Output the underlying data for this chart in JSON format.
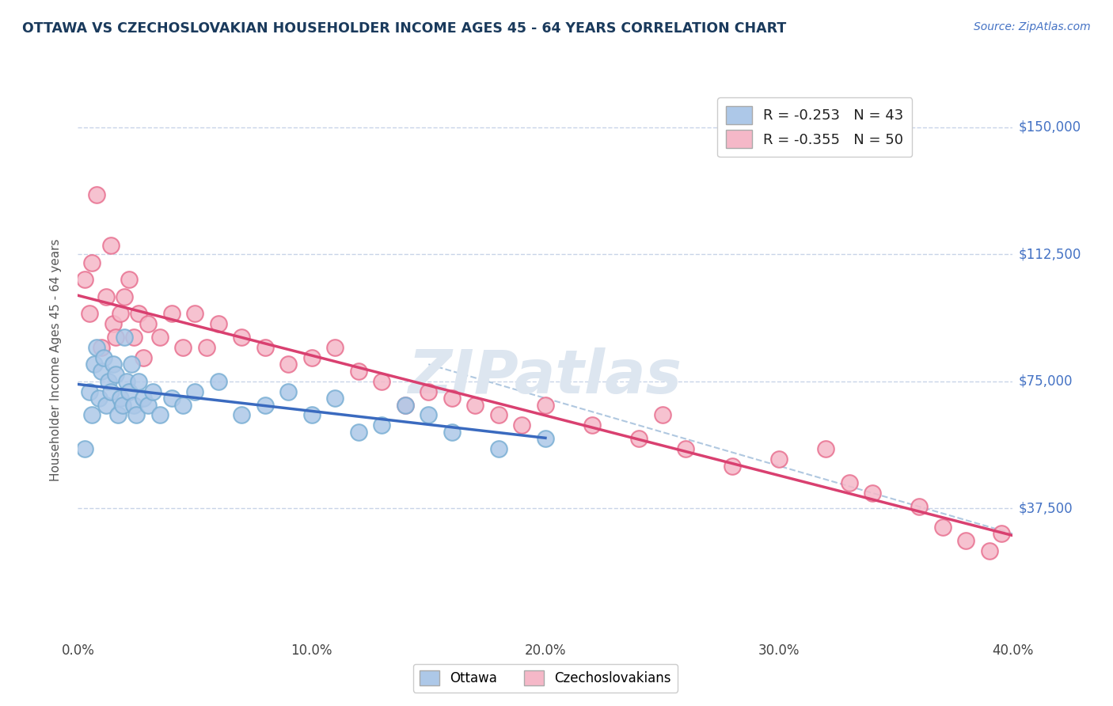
{
  "title": "OTTAWA VS CZECHOSLOVAKIAN HOUSEHOLDER INCOME AGES 45 - 64 YEARS CORRELATION CHART",
  "source": "Source: ZipAtlas.com",
  "ylabel": "Householder Income Ages 45 - 64 years",
  "xlim": [
    0.0,
    40.0
  ],
  "ylim": [
    0,
    162500
  ],
  "yticks": [
    0,
    37500,
    75000,
    112500,
    150000
  ],
  "ytick_labels": [
    "",
    "$37,500",
    "$75,000",
    "$112,500",
    "$150,000"
  ],
  "xticks": [
    0.0,
    10.0,
    20.0,
    30.0,
    40.0
  ],
  "xtick_labels": [
    "0.0%",
    "10.0%",
    "20.0%",
    "30.0%",
    "40.0%"
  ],
  "watermark": "ZIPatlas",
  "ottawa_color": "#adc8e8",
  "czech_color": "#f5b8c8",
  "ottawa_edge": "#7aafd4",
  "czech_edge": "#e87090",
  "trend_blue": "#3a6abf",
  "trend_pink": "#d94070",
  "trend_dashed": "#b0c8e0",
  "ottawa_R": -0.253,
  "ottawa_N": 43,
  "czech_R": -0.355,
  "czech_N": 50,
  "legend_blue_label": "R = -0.253   N = 43",
  "legend_pink_label": "R = -0.355   N = 50",
  "ottawa_x": [
    0.3,
    0.5,
    0.6,
    0.7,
    0.8,
    0.9,
    1.0,
    1.1,
    1.2,
    1.3,
    1.4,
    1.5,
    1.6,
    1.7,
    1.8,
    1.9,
    2.0,
    2.1,
    2.2,
    2.3,
    2.4,
    2.5,
    2.6,
    2.8,
    3.0,
    3.2,
    3.5,
    4.0,
    4.5,
    5.0,
    6.0,
    7.0,
    8.0,
    9.0,
    10.0,
    11.0,
    12.0,
    13.0,
    14.0,
    15.0,
    16.0,
    18.0,
    20.0
  ],
  "ottawa_y": [
    55000,
    72000,
    65000,
    80000,
    85000,
    70000,
    78000,
    82000,
    68000,
    75000,
    72000,
    80000,
    77000,
    65000,
    70000,
    68000,
    88000,
    75000,
    72000,
    80000,
    68000,
    65000,
    75000,
    70000,
    68000,
    72000,
    65000,
    70000,
    68000,
    72000,
    75000,
    65000,
    68000,
    72000,
    65000,
    70000,
    60000,
    62000,
    68000,
    65000,
    60000,
    55000,
    58000
  ],
  "czech_x": [
    0.3,
    0.5,
    0.6,
    0.8,
    1.0,
    1.2,
    1.4,
    1.5,
    1.6,
    1.8,
    2.0,
    2.2,
    2.4,
    2.6,
    2.8,
    3.0,
    3.5,
    4.0,
    4.5,
    5.0,
    5.5,
    6.0,
    7.0,
    8.0,
    9.0,
    10.0,
    11.0,
    12.0,
    13.0,
    14.0,
    15.0,
    16.0,
    17.0,
    18.0,
    19.0,
    20.0,
    22.0,
    24.0,
    25.0,
    26.0,
    28.0,
    30.0,
    32.0,
    33.0,
    34.0,
    36.0,
    37.0,
    38.0,
    39.0,
    39.5
  ],
  "czech_y": [
    105000,
    95000,
    110000,
    130000,
    85000,
    100000,
    115000,
    92000,
    88000,
    95000,
    100000,
    105000,
    88000,
    95000,
    82000,
    92000,
    88000,
    95000,
    85000,
    95000,
    85000,
    92000,
    88000,
    85000,
    80000,
    82000,
    85000,
    78000,
    75000,
    68000,
    72000,
    70000,
    68000,
    65000,
    62000,
    68000,
    62000,
    58000,
    65000,
    55000,
    50000,
    52000,
    55000,
    45000,
    42000,
    38000,
    32000,
    28000,
    25000,
    30000
  ],
  "background_color": "#ffffff",
  "grid_color": "#c8d4e8",
  "title_color": "#1a3a5c",
  "source_color": "#4472c4",
  "axis_label_color": "#555555",
  "ytick_color": "#4472c4",
  "watermark_color": "#dde6f0"
}
